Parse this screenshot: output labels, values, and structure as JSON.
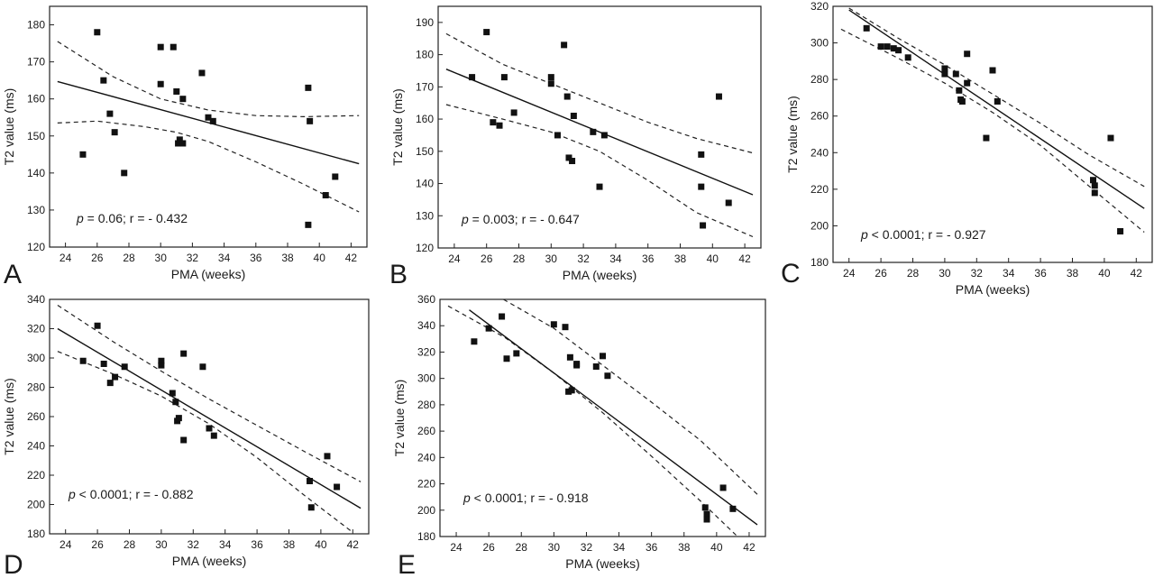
{
  "chart_data": [
    {
      "type": "scatter",
      "panel_label": "A",
      "xlabel": "PMA (weeks)",
      "ylabel": "T2 value (ms)",
      "annotation": {
        "p_symbol": "p",
        "text": " = 0.06; r = - 0.432"
      },
      "xlim": [
        23,
        43
      ],
      "ylim": [
        120,
        185
      ],
      "xticks": [
        24,
        26,
        28,
        30,
        32,
        34,
        36,
        38,
        40,
        42
      ],
      "yticks": [
        120,
        130,
        140,
        150,
        160,
        170,
        180
      ],
      "points": [
        [
          25.1,
          145
        ],
        [
          26,
          178
        ],
        [
          26.4,
          165
        ],
        [
          26.8,
          156
        ],
        [
          27.1,
          151
        ],
        [
          27.7,
          140
        ],
        [
          30,
          164
        ],
        [
          30,
          174
        ],
        [
          30.8,
          174
        ],
        [
          31,
          162
        ],
        [
          31.1,
          148
        ],
        [
          31.2,
          149
        ],
        [
          31.4,
          148
        ],
        [
          31.4,
          160
        ],
        [
          32.6,
          167
        ],
        [
          33,
          155
        ],
        [
          33.3,
          154
        ],
        [
          39.3,
          163
        ],
        [
          39.4,
          154
        ],
        [
          39.3,
          126
        ],
        [
          40.4,
          134
        ],
        [
          41,
          139
        ]
      ],
      "fit": [
        [
          23.5,
          164.7
        ],
        [
          42.5,
          142.5
        ]
      ],
      "ci_upper": [
        [
          23.5,
          175.5
        ],
        [
          27,
          166
        ],
        [
          30,
          160
        ],
        [
          33,
          157
        ],
        [
          36,
          155.5
        ],
        [
          39,
          155.2
        ],
        [
          42.5,
          155.5
        ]
      ],
      "ci_lower": [
        [
          23.5,
          153.5
        ],
        [
          26,
          154
        ],
        [
          29,
          152.5
        ],
        [
          31,
          151
        ],
        [
          33,
          148.5
        ],
        [
          36,
          143
        ],
        [
          39,
          137
        ],
        [
          42.5,
          129.5
        ]
      ]
    },
    {
      "type": "scatter",
      "panel_label": "B",
      "xlabel": "PMA (weeks)",
      "ylabel": "T2 value (ms)",
      "annotation": {
        "p_symbol": "p",
        "text": " = 0.003; r = - 0.647"
      },
      "xlim": [
        23,
        43
      ],
      "ylim": [
        120,
        195
      ],
      "xticks": [
        24,
        26,
        28,
        30,
        32,
        34,
        36,
        38,
        40,
        42
      ],
      "yticks": [
        120,
        130,
        140,
        150,
        160,
        170,
        180,
        190
      ],
      "points": [
        [
          25.1,
          173
        ],
        [
          26,
          187
        ],
        [
          26.4,
          159
        ],
        [
          26.8,
          158
        ],
        [
          27.1,
          173
        ],
        [
          27.7,
          162
        ],
        [
          30,
          173
        ],
        [
          30,
          171
        ],
        [
          30.4,
          155
        ],
        [
          30.8,
          183
        ],
        [
          31,
          167
        ],
        [
          31.1,
          148
        ],
        [
          31.3,
          147
        ],
        [
          31.4,
          161
        ],
        [
          32.6,
          156
        ],
        [
          33,
          139
        ],
        [
          33.3,
          155
        ],
        [
          39.3,
          149
        ],
        [
          39.3,
          139
        ],
        [
          39.4,
          127
        ],
        [
          40.4,
          167
        ],
        [
          41,
          134
        ]
      ],
      "fit": [
        [
          23.5,
          175.5
        ],
        [
          42.5,
          136.5
        ]
      ],
      "ci_upper": [
        [
          23.5,
          186.5
        ],
        [
          27,
          177
        ],
        [
          30,
          171
        ],
        [
          33,
          165
        ],
        [
          36,
          159
        ],
        [
          39,
          154
        ],
        [
          42.5,
          149.5
        ]
      ],
      "ci_lower": [
        [
          23.5,
          164.5
        ],
        [
          27,
          160
        ],
        [
          30,
          156
        ],
        [
          33,
          150
        ],
        [
          36,
          141
        ],
        [
          39,
          131
        ],
        [
          42.5,
          123.5
        ]
      ]
    },
    {
      "type": "scatter",
      "panel_label": "C",
      "xlabel": "PMA (weeks)",
      "ylabel": "T2 value (ms)",
      "annotation": {
        "p_symbol": "p",
        "text": " < 0.0001; r = - 0.927"
      },
      "xlim": [
        23,
        43
      ],
      "ylim": [
        180,
        320
      ],
      "xticks": [
        24,
        26,
        28,
        30,
        32,
        34,
        36,
        38,
        40,
        42
      ],
      "yticks": [
        180,
        200,
        220,
        240,
        260,
        280,
        300,
        320
      ],
      "points": [
        [
          25.1,
          308
        ],
        [
          26,
          298
        ],
        [
          26.4,
          298
        ],
        [
          26.8,
          297
        ],
        [
          27.1,
          296
        ],
        [
          27.7,
          292
        ],
        [
          30,
          283
        ],
        [
          30,
          286
        ],
        [
          30.7,
          283
        ],
        [
          30.9,
          274
        ],
        [
          31,
          269
        ],
        [
          31.1,
          268
        ],
        [
          31.4,
          294
        ],
        [
          31.4,
          278
        ],
        [
          32.6,
          248
        ],
        [
          33,
          285
        ],
        [
          33.3,
          268
        ],
        [
          39.3,
          225
        ],
        [
          39.4,
          222
        ],
        [
          39.4,
          218
        ],
        [
          40.4,
          248
        ],
        [
          41,
          197
        ]
      ],
      "fit": [
        [
          24,
          318
        ],
        [
          42.5,
          209.5
        ]
      ],
      "ci_upper": [
        [
          24,
          319
        ],
        [
          27,
          303
        ],
        [
          30,
          288
        ],
        [
          33,
          272
        ],
        [
          36,
          256
        ],
        [
          39,
          239
        ],
        [
          42.5,
          221.5
        ]
      ],
      "ci_lower": [
        [
          23.5,
          307.5
        ],
        [
          27,
          292
        ],
        [
          30,
          278
        ],
        [
          33,
          262
        ],
        [
          36,
          244
        ],
        [
          39,
          222
        ],
        [
          42.5,
          196.5
        ]
      ]
    },
    {
      "type": "scatter",
      "panel_label": "D",
      "xlabel": "PMA (weeks)",
      "ylabel": "T2 value (ms)",
      "annotation": {
        "p_symbol": "p",
        "text": " < 0.0001; r = - 0.882"
      },
      "xlim": [
        23,
        43
      ],
      "ylim": [
        180,
        340
      ],
      "xticks": [
        24,
        26,
        28,
        30,
        32,
        34,
        36,
        38,
        40,
        42
      ],
      "yticks": [
        180,
        200,
        220,
        240,
        260,
        280,
        300,
        320,
        340
      ],
      "points": [
        [
          25.1,
          298
        ],
        [
          26,
          322
        ],
        [
          26.4,
          296
        ],
        [
          26.8,
          283
        ],
        [
          27.1,
          287
        ],
        [
          27.7,
          294
        ],
        [
          30,
          298
        ],
        [
          30,
          295
        ],
        [
          30.7,
          276
        ],
        [
          30.9,
          270
        ],
        [
          31,
          257
        ],
        [
          31.1,
          259
        ],
        [
          31.4,
          244
        ],
        [
          31.4,
          303
        ],
        [
          32.6,
          294
        ],
        [
          33,
          252
        ],
        [
          33.3,
          247
        ],
        [
          39.3,
          216
        ],
        [
          39.4,
          198
        ],
        [
          40.4,
          233
        ],
        [
          41,
          212
        ]
      ],
      "fit": [
        [
          23.5,
          320
        ],
        [
          42.5,
          197.5
        ]
      ],
      "ci_upper": [
        [
          23.5,
          336
        ],
        [
          27,
          311
        ],
        [
          30,
          291
        ],
        [
          33,
          272
        ],
        [
          36,
          254
        ],
        [
          39,
          236
        ],
        [
          42.5,
          215.5
        ]
      ],
      "ci_lower": [
        [
          23.5,
          304.5
        ],
        [
          27,
          289
        ],
        [
          30,
          274
        ],
        [
          33,
          255
        ],
        [
          36,
          232
        ],
        [
          39,
          206
        ],
        [
          42,
          181
        ]
      ]
    },
    {
      "type": "scatter",
      "panel_label": "E",
      "xlabel": "PMA (weeks)",
      "ylabel": "T2 value (ms)",
      "annotation": {
        "p_symbol": "p",
        "text": " < 0.0001; r = - 0.918"
      },
      "xlim": [
        23,
        43
      ],
      "ylim": [
        180,
        360
      ],
      "xticks": [
        24,
        26,
        28,
        30,
        32,
        34,
        36,
        38,
        40,
        42
      ],
      "yticks": [
        180,
        200,
        220,
        240,
        260,
        280,
        300,
        320,
        340,
        360
      ],
      "points": [
        [
          25.1,
          328
        ],
        [
          26,
          338
        ],
        [
          26.8,
          347
        ],
        [
          27.1,
          315
        ],
        [
          27.7,
          319
        ],
        [
          30,
          341
        ],
        [
          30.7,
          339
        ],
        [
          30.9,
          290
        ],
        [
          31,
          316
        ],
        [
          31.1,
          291
        ],
        [
          31.4,
          310
        ],
        [
          31.4,
          311
        ],
        [
          32.6,
          309
        ],
        [
          33,
          317
        ],
        [
          33.3,
          302
        ],
        [
          39.3,
          202
        ],
        [
          39.4,
          197
        ],
        [
          39.4,
          193
        ],
        [
          40.4,
          217
        ],
        [
          41,
          201
        ]
      ],
      "fit": [
        [
          24.8,
          352
        ],
        [
          42.5,
          189
        ]
      ],
      "ci_upper": [
        [
          26.9,
          360
        ],
        [
          30,
          338
        ],
        [
          33,
          310
        ],
        [
          36,
          282
        ],
        [
          39,
          253
        ],
        [
          42.5,
          212
        ]
      ],
      "ci_lower": [
        [
          23.5,
          355
        ],
        [
          27,
          331
        ],
        [
          30,
          304
        ],
        [
          33,
          274
        ],
        [
          36,
          241
        ],
        [
          39,
          207
        ],
        [
          41.2,
          181
        ]
      ]
    }
  ]
}
